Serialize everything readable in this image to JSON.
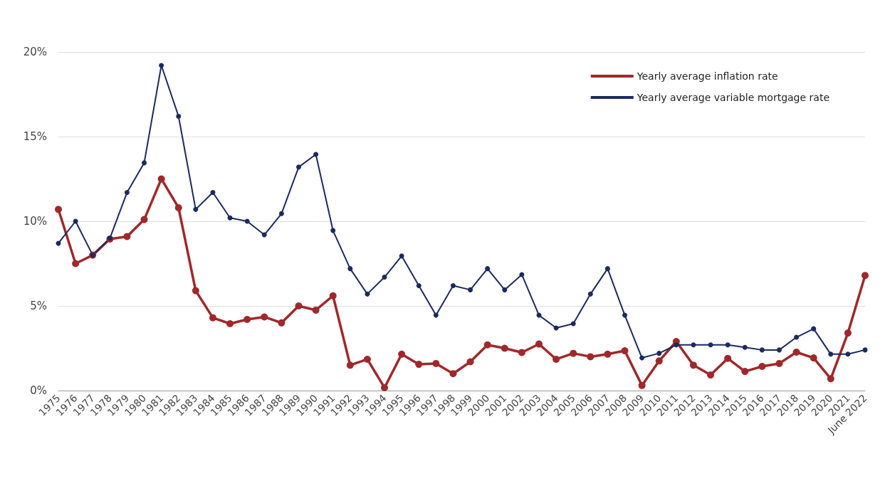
{
  "chart_data": {
    "type": "line",
    "categories": [
      "1975",
      "1976",
      "1977",
      "1978",
      "1979",
      "1980",
      "1981",
      "1982",
      "1983",
      "1984",
      "1985",
      "1986",
      "1987",
      "1988",
      "1989",
      "1990",
      "1991",
      "1992",
      "1993",
      "1994",
      "1995",
      "1996",
      "1997",
      "1998",
      "1999",
      "2000",
      "2001",
      "2002",
      "2003",
      "2004",
      "2005",
      "2006",
      "2007",
      "2008",
      "2009",
      "2010",
      "2011",
      "2012",
      "2013",
      "2014",
      "2015",
      "2016",
      "2017",
      "2018",
      "2019",
      "2020",
      "2021",
      "June 2022"
    ],
    "series": [
      {
        "name": "Yearly average inflation rate",
        "color": "#a0282a",
        "values": [
          10.7,
          7.5,
          8.0,
          8.95,
          9.1,
          10.1,
          12.5,
          10.8,
          5.9,
          4.3,
          3.95,
          4.2,
          4.35,
          4.0,
          5.0,
          4.75,
          5.6,
          1.5,
          1.85,
          0.17,
          2.15,
          1.55,
          1.6,
          1.0,
          1.7,
          2.7,
          2.5,
          2.25,
          2.75,
          1.85,
          2.2,
          2.0,
          2.15,
          2.35,
          0.3,
          1.75,
          2.9,
          1.5,
          0.92,
          1.9,
          1.13,
          1.43,
          1.6,
          2.27,
          1.93,
          0.7,
          3.4,
          6.8
        ]
      },
      {
        "name": "Yearly average variable mortgage rate",
        "color": "#1b2a5e",
        "values": [
          8.7,
          10.0,
          8.0,
          9.0,
          11.7,
          13.45,
          19.2,
          16.2,
          10.7,
          11.7,
          10.2,
          10.0,
          9.2,
          10.45,
          13.2,
          13.95,
          9.45,
          7.2,
          5.7,
          6.7,
          7.95,
          6.2,
          4.45,
          6.2,
          5.95,
          7.2,
          5.95,
          6.85,
          4.45,
          3.7,
          3.95,
          5.7,
          7.2,
          4.45,
          1.93,
          2.2,
          2.7,
          2.7,
          2.7,
          2.7,
          2.55,
          2.4,
          2.4,
          3.15,
          3.65,
          2.15,
          2.15,
          2.4
        ]
      }
    ],
    "ylim": [
      0,
      20
    ],
    "yticks": [
      {
        "value": 0,
        "label": "0%"
      },
      {
        "value": 5,
        "label": "5%"
      },
      {
        "value": 10,
        "label": "10%"
      },
      {
        "value": 15,
        "label": "15%"
      },
      {
        "value": 20,
        "label": "20%"
      }
    ],
    "grid": "y",
    "legend": "top right",
    "marker": "circle",
    "line_style": "solid"
  }
}
